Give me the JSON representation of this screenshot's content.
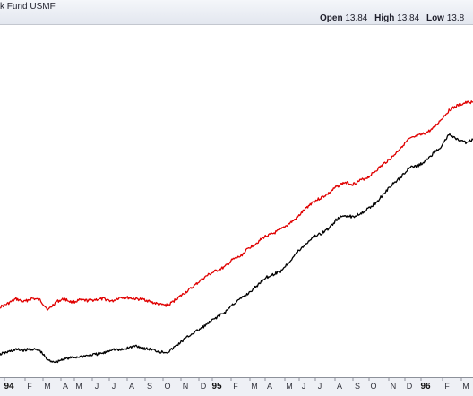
{
  "header": {
    "title": "k Fund USMF",
    "open_label": "Open",
    "open_value": "13.84",
    "high_label": "High",
    "high_value": "13.84",
    "low_label": "Low",
    "low_value": "13.8"
  },
  "chart_data": {
    "type": "line",
    "grid": false,
    "x_ticks": [
      "94",
      "F",
      "M",
      "A",
      "M",
      "J",
      "J",
      "A",
      "S",
      "O",
      "N",
      "D",
      "95",
      "F",
      "M",
      "A",
      "M",
      "J",
      "J",
      "A",
      "S",
      "O",
      "N",
      "D",
      "96",
      "F",
      "M"
    ],
    "x_range": [
      "1993-12",
      "1996-03"
    ],
    "y_axis_labels": "none visible",
    "series": [
      {
        "color": "#e00000",
        "values": [
          11.4,
          12.0,
          12.8,
          12.3,
          12.9,
          12.6,
          10.9,
          12.3,
          12.8,
          12.2,
          12.6,
          12.5,
          12.7,
          12.8,
          12.4,
          13.1,
          13.0,
          12.8,
          12.7,
          12.2,
          11.8,
          11.7,
          12.8,
          13.8,
          14.8,
          16.0,
          17.0,
          17.7,
          18.3,
          19.6,
          20.2,
          21.6,
          22.5,
          23.6,
          24.1,
          24.8,
          25.8,
          26.8,
          28.3,
          29.6,
          30.3,
          31.1,
          32.3,
          33.0,
          32.7,
          33.4,
          34.0,
          35.2,
          36.4,
          37.5,
          39.1,
          40.5,
          41.0,
          41.5,
          42.3,
          43.9,
          45.5,
          46.3,
          46.8,
          47.0
        ]
      },
      {
        "color": "#000000",
        "values": [
          3.2,
          3.6,
          4.0,
          3.9,
          4.1,
          3.8,
          2.1,
          1.9,
          2.4,
          2.6,
          2.8,
          3.0,
          3.2,
          3.4,
          4.1,
          3.9,
          4.3,
          4.7,
          4.2,
          4.0,
          3.6,
          3.6,
          4.7,
          5.8,
          6.8,
          7.6,
          8.6,
          9.6,
          10.4,
          11.8,
          12.8,
          13.8,
          15.0,
          16.4,
          17.0,
          17.6,
          19.1,
          20.8,
          22.1,
          23.5,
          24.1,
          25.0,
          26.6,
          27.3,
          27.0,
          27.7,
          28.5,
          29.6,
          31.3,
          32.7,
          33.9,
          35.6,
          35.8,
          36.6,
          38.0,
          39.2,
          41.3,
          40.5,
          39.9,
          40.4
        ]
      }
    ]
  }
}
